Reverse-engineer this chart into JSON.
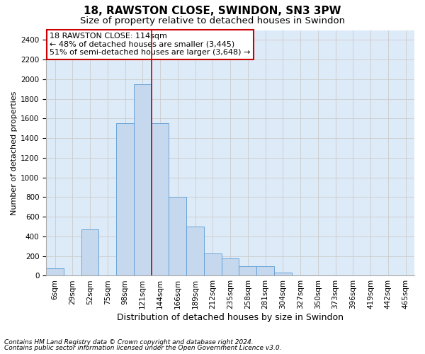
{
  "title": "18, RAWSTON CLOSE, SWINDON, SN3 3PW",
  "subtitle": "Size of property relative to detached houses in Swindon",
  "xlabel": "Distribution of detached houses by size in Swindon",
  "ylabel": "Number of detached properties",
  "categories": [
    "6sqm",
    "29sqm",
    "52sqm",
    "75sqm",
    "98sqm",
    "121sqm",
    "144sqm",
    "166sqm",
    "189sqm",
    "212sqm",
    "235sqm",
    "258sqm",
    "281sqm",
    "304sqm",
    "327sqm",
    "350sqm",
    "373sqm",
    "396sqm",
    "419sqm",
    "442sqm",
    "465sqm"
  ],
  "values": [
    75,
    0,
    475,
    0,
    1550,
    1950,
    1550,
    800,
    500,
    225,
    175,
    100,
    100,
    30,
    0,
    0,
    0,
    0,
    0,
    0,
    0
  ],
  "bar_color": "#c5d8ee",
  "bar_edge_color": "#5b9bd5",
  "vline_index": 5.5,
  "vline_color": "#cc0000",
  "annotation_text": "18 RAWSTON CLOSE: 114sqm\n← 48% of detached houses are smaller (3,445)\n51% of semi-detached houses are larger (3,648) →",
  "annotation_box_facecolor": "#ffffff",
  "annotation_box_edgecolor": "#cc0000",
  "ylim_max": 2500,
  "ytick_step": 200,
  "grid_color": "#cccccc",
  "bg_color": "#ddeaf7",
  "footer_line1": "Contains HM Land Registry data © Crown copyright and database right 2024.",
  "footer_line2": "Contains public sector information licensed under the Open Government Licence v3.0.",
  "title_fontsize": 11,
  "subtitle_fontsize": 9.5,
  "xlabel_fontsize": 9,
  "ylabel_fontsize": 8,
  "tick_fontsize": 7.5,
  "annotation_fontsize": 8,
  "footer_fontsize": 6.5
}
